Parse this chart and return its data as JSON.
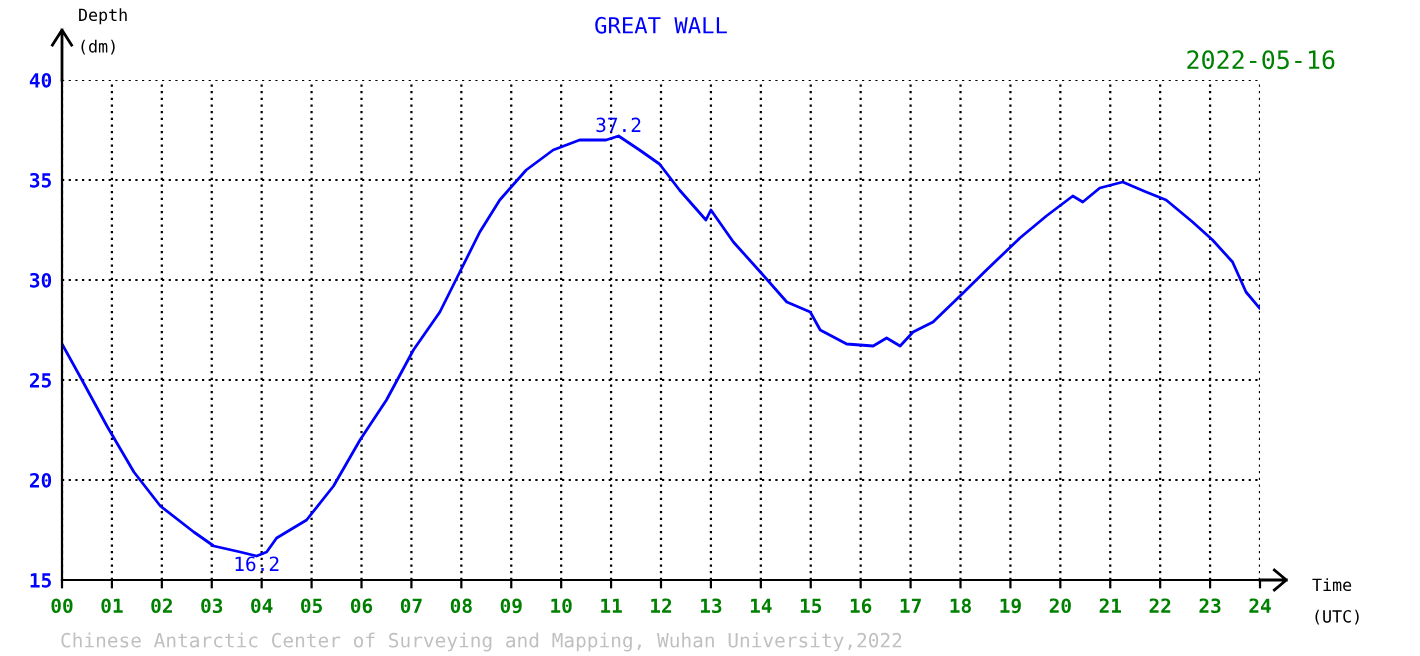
{
  "chart_data": {
    "type": "line",
    "title": "GREAT WALL",
    "subtitle": "2022-05-16",
    "xlabel": "Time\n(UTC)",
    "ylabel": "Depth\n(dm)",
    "series": [
      {
        "color": "#0000ff",
        "x": [
          0,
          0.4,
          0.9,
          1.44,
          1.97,
          2.64,
          3.04,
          3.57,
          3.9,
          4.1,
          4.3,
          4.9,
          5.44,
          5.97,
          6.5,
          7.04,
          7.57,
          7.97,
          8.37,
          8.77,
          9.3,
          9.84,
          10.37,
          10.9,
          11.15,
          11.57,
          11.97,
          12.37,
          12.9,
          13.0,
          13.45,
          13.99,
          14.52,
          14.99,
          15.19,
          15.72,
          16.25,
          16.52,
          16.79,
          17.05,
          17.45,
          17.99,
          18.52,
          19.19,
          19.72,
          20.25,
          20.45,
          20.79,
          21.25,
          21.72,
          22.12,
          22.65,
          23.05,
          23.45,
          23.72,
          23.99
        ],
        "values": [
          26.8,
          25.0,
          22.7,
          20.4,
          18.7,
          17.4,
          16.7,
          16.4,
          16.2,
          16.4,
          17.1,
          18.0,
          19.7,
          22.0,
          24.0,
          26.5,
          28.4,
          30.4,
          32.4,
          34.0,
          35.5,
          36.5,
          37.0,
          37.0,
          37.2,
          36.5,
          35.8,
          34.5,
          33.0,
          33.5,
          31.9,
          30.4,
          28.9,
          28.4,
          27.5,
          26.8,
          26.7,
          27.1,
          26.7,
          27.4,
          27.9,
          29.2,
          30.5,
          32.1,
          33.2,
          34.2,
          33.9,
          34.6,
          34.9,
          34.4,
          34.0,
          32.9,
          32.0,
          30.9,
          29.4,
          28.6
        ]
      }
    ],
    "xlim": [
      0,
      24
    ],
    "ylim": [
      15,
      40
    ],
    "xticks": [
      {
        "value": 0,
        "label": "00"
      },
      {
        "value": 1,
        "label": "01"
      },
      {
        "value": 2,
        "label": "02"
      },
      {
        "value": 3,
        "label": "03"
      },
      {
        "value": 4,
        "label": "04"
      },
      {
        "value": 5,
        "label": "05"
      },
      {
        "value": 6,
        "label": "06"
      },
      {
        "value": 7,
        "label": "07"
      },
      {
        "value": 8,
        "label": "08"
      },
      {
        "value": 9,
        "label": "09"
      },
      10,
      11,
      12,
      13,
      14,
      15,
      16,
      17,
      18,
      19,
      20,
      21,
      22,
      23,
      24
    ],
    "yticks": [
      15,
      20,
      25,
      30,
      35,
      40
    ],
    "grid": true,
    "line_style": "solid",
    "marker": "none",
    "annotations": [
      {
        "text": "37.2",
        "x": 11.15,
        "y": 37.2
      },
      {
        "text": "16.2",
        "x": 3.9,
        "y": 16.2
      },
      "Chinese Antarctic Center of Surveying and Mapping, Wuhan University,2022"
    ]
  }
}
